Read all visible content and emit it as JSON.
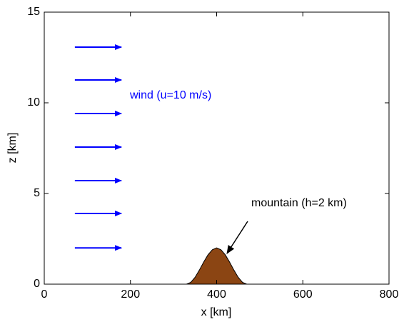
{
  "chart_data": {
    "type": "area",
    "xlabel": "x [km]",
    "ylabel": "z [km]",
    "xlim": [
      0,
      800
    ],
    "ylim": [
      0,
      15
    ],
    "xticks": [
      0,
      200,
      400,
      600,
      800
    ],
    "yticks": [
      0,
      5,
      10,
      15
    ],
    "grid": false,
    "x": [
      330,
      340,
      350,
      360,
      370,
      380,
      390,
      400,
      410,
      420,
      430,
      440,
      450,
      460,
      470
    ],
    "values": [
      0,
      0.1,
      0.38,
      0.78,
      1.22,
      1.62,
      1.9,
      2,
      1.9,
      1.62,
      1.22,
      0.78,
      0.38,
      0.1,
      0
    ],
    "color": "#8b4513",
    "quiver": {
      "color": "#0000ff",
      "x": [
        71,
        71,
        71,
        71,
        71,
        71,
        71
      ],
      "y": [
        2,
        3.9,
        5.71,
        7.56,
        9.41,
        11.26,
        13.07
      ],
      "u": [
        108,
        108,
        108,
        108,
        108,
        108,
        108
      ]
    },
    "annotations": [
      "wind (u=10 m/s)",
      "mountain (h=2 km)"
    ]
  }
}
